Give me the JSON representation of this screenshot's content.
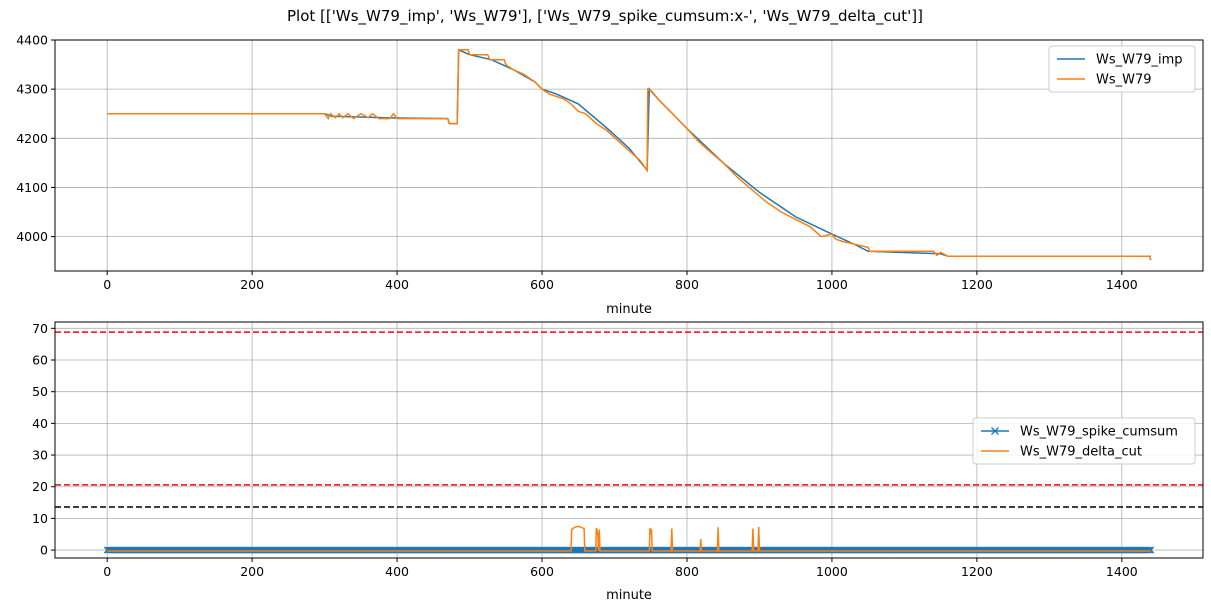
{
  "figure": {
    "title": "Plot [['Ws_W79_imp', 'Ws_W79'], ['Ws_W79_spike_cumsum:x-', 'Ws_W79_delta_cut']]"
  },
  "colors": {
    "blue": "#1f77b4",
    "orange": "#ff7f0e",
    "grid": "#b0b0b0",
    "red": "#ff0000",
    "black": "#000000"
  },
  "chart_data": [
    {
      "type": "line",
      "xlabel": "minute",
      "ylabel": "",
      "xlim": [
        -72,
        1512
      ],
      "ylim": [
        3930,
        4400
      ],
      "xticks": [
        0,
        200,
        400,
        600,
        800,
        1000,
        1200,
        1400
      ],
      "yticks": [
        4000,
        4100,
        4200,
        4300,
        4400
      ],
      "grid": true,
      "legend": "upper right",
      "series": [
        {
          "name": "Ws_W79_imp",
          "color": "#1f77b4",
          "style": "-",
          "points": [
            [
              0,
              4250
            ],
            [
              300,
              4250
            ],
            [
              310,
              4245
            ],
            [
              380,
              4242
            ],
            [
              470,
              4240
            ],
            [
              472,
              4230
            ],
            [
              483,
              4230
            ],
            [
              485,
              4380
            ],
            [
              500,
              4370
            ],
            [
              530,
              4360
            ],
            [
              560,
              4340
            ],
            [
              590,
              4315
            ],
            [
              600,
              4300
            ],
            [
              620,
              4290
            ],
            [
              650,
              4270
            ],
            [
              690,
              4220
            ],
            [
              720,
              4180
            ],
            [
              745,
              4135
            ],
            [
              748,
              4300
            ],
            [
              760,
              4280
            ],
            [
              800,
              4220
            ],
            [
              850,
              4150
            ],
            [
              900,
              4090
            ],
            [
              950,
              4040
            ],
            [
              1000,
              4005
            ],
            [
              1030,
              3985
            ],
            [
              1050,
              3970
            ],
            [
              1150,
              3965
            ],
            [
              1160,
              3960
            ],
            [
              1440,
              3960
            ]
          ]
        },
        {
          "name": "Ws_W79",
          "color": "#ff7f0e",
          "style": "-",
          "points": [
            [
              0,
              4250
            ],
            [
              300,
              4250
            ],
            [
              305,
              4240
            ],
            [
              308,
              4250
            ],
            [
              315,
              4242
            ],
            [
              320,
              4250
            ],
            [
              325,
              4242
            ],
            [
              332,
              4250
            ],
            [
              340,
              4240
            ],
            [
              350,
              4250
            ],
            [
              360,
              4242
            ],
            [
              366,
              4250
            ],
            [
              375,
              4240
            ],
            [
              390,
              4240
            ],
            [
              395,
              4250
            ],
            [
              400,
              4240
            ],
            [
              470,
              4240
            ],
            [
              472,
              4230
            ],
            [
              483,
              4230
            ],
            [
              485,
              4380
            ],
            [
              498,
              4380
            ],
            [
              500,
              4370
            ],
            [
              525,
              4370
            ],
            [
              528,
              4360
            ],
            [
              548,
              4360
            ],
            [
              550,
              4350
            ],
            [
              560,
              4340
            ],
            [
              575,
              4330
            ],
            [
              590,
              4315
            ],
            [
              600,
              4300
            ],
            [
              610,
              4290
            ],
            [
              620,
              4285
            ],
            [
              630,
              4280
            ],
            [
              640,
              4270
            ],
            [
              650,
              4255
            ],
            [
              660,
              4250
            ],
            [
              675,
              4230
            ],
            [
              690,
              4215
            ],
            [
              705,
              4195
            ],
            [
              720,
              4175
            ],
            [
              735,
              4155
            ],
            [
              745,
              4135
            ],
            [
              746,
              4300
            ],
            [
              752,
              4295
            ],
            [
              760,
              4280
            ],
            [
              770,
              4265
            ],
            [
              780,
              4250
            ],
            [
              790,
              4235
            ],
            [
              800,
              4220
            ],
            [
              815,
              4195
            ],
            [
              830,
              4175
            ],
            [
              850,
              4150
            ],
            [
              870,
              4120
            ],
            [
              890,
              4095
            ],
            [
              910,
              4070
            ],
            [
              930,
              4050
            ],
            [
              950,
              4035
            ],
            [
              970,
              4020
            ],
            [
              985,
              4000
            ],
            [
              1000,
              4005
            ],
            [
              1005,
              3995
            ],
            [
              1015,
              3990
            ],
            [
              1030,
              3985
            ],
            [
              1050,
              3978
            ],
            [
              1052,
              3970
            ],
            [
              1140,
              3970
            ],
            [
              1145,
              3962
            ],
            [
              1150,
              3968
            ],
            [
              1160,
              3960
            ],
            [
              1438,
              3960
            ],
            [
              1440,
              3952
            ]
          ]
        }
      ],
      "hlines": []
    },
    {
      "type": "line",
      "xlabel": "minute",
      "ylabel": "",
      "xlim": [
        -72,
        1512
      ],
      "ylim": [
        -2.5,
        72
      ],
      "xticks": [
        0,
        200,
        400,
        600,
        800,
        1000,
        1200,
        1400
      ],
      "yticks": [
        0,
        10,
        20,
        30,
        40,
        50,
        60,
        70
      ],
      "grid": true,
      "legend": "center right",
      "series": [
        {
          "name": "Ws_W79_spike_cumsum",
          "color": "#1f77b4",
          "style": "x-",
          "points": [
            [
              0,
              0
            ],
            [
              648,
              0
            ],
            [
              650,
              0.2
            ],
            [
              655,
              0
            ],
            [
              1440,
              0
            ]
          ]
        },
        {
          "name": "Ws_W79_delta_cut",
          "color": "#ff7f0e",
          "style": "-",
          "points": [
            [
              0,
              -0.3
            ],
            [
              640,
              -0.3
            ],
            [
              641,
              6.5
            ],
            [
              645,
              7.2
            ],
            [
              650,
              7.5
            ],
            [
              656,
              7
            ],
            [
              658,
              6.8
            ],
            [
              659,
              -0.3
            ],
            [
              674,
              -0.3
            ],
            [
              675,
              7
            ],
            [
              677,
              5
            ],
            [
              678,
              -0.3
            ],
            [
              679,
              6.5
            ],
            [
              680,
              -0.3
            ],
            [
              748,
              -0.3
            ],
            [
              749,
              7
            ],
            [
              750,
              5
            ],
            [
              751,
              6.6
            ],
            [
              752,
              -0.3
            ],
            [
              778,
              -0.3
            ],
            [
              779,
              6.8
            ],
            [
              780,
              -0.3
            ],
            [
              818,
              -0.3
            ],
            [
              819,
              3.5
            ],
            [
              820,
              -0.3
            ],
            [
              842,
              -0.3
            ],
            [
              843,
              7.2
            ],
            [
              844,
              -0.3
            ],
            [
              890,
              -0.3
            ],
            [
              891,
              6.8
            ],
            [
              892,
              -0.3
            ],
            [
              898,
              -0.3
            ],
            [
              899,
              7.3
            ],
            [
              900,
              -0.3
            ],
            [
              1440,
              -0.3
            ]
          ]
        }
      ],
      "hlines": [
        {
          "y": 68.8,
          "color": "#ff0000",
          "style": "--"
        },
        {
          "y": 20.6,
          "color": "#ff0000",
          "style": "--"
        },
        {
          "y": 13.6,
          "color": "#000000",
          "style": "--"
        }
      ]
    }
  ]
}
